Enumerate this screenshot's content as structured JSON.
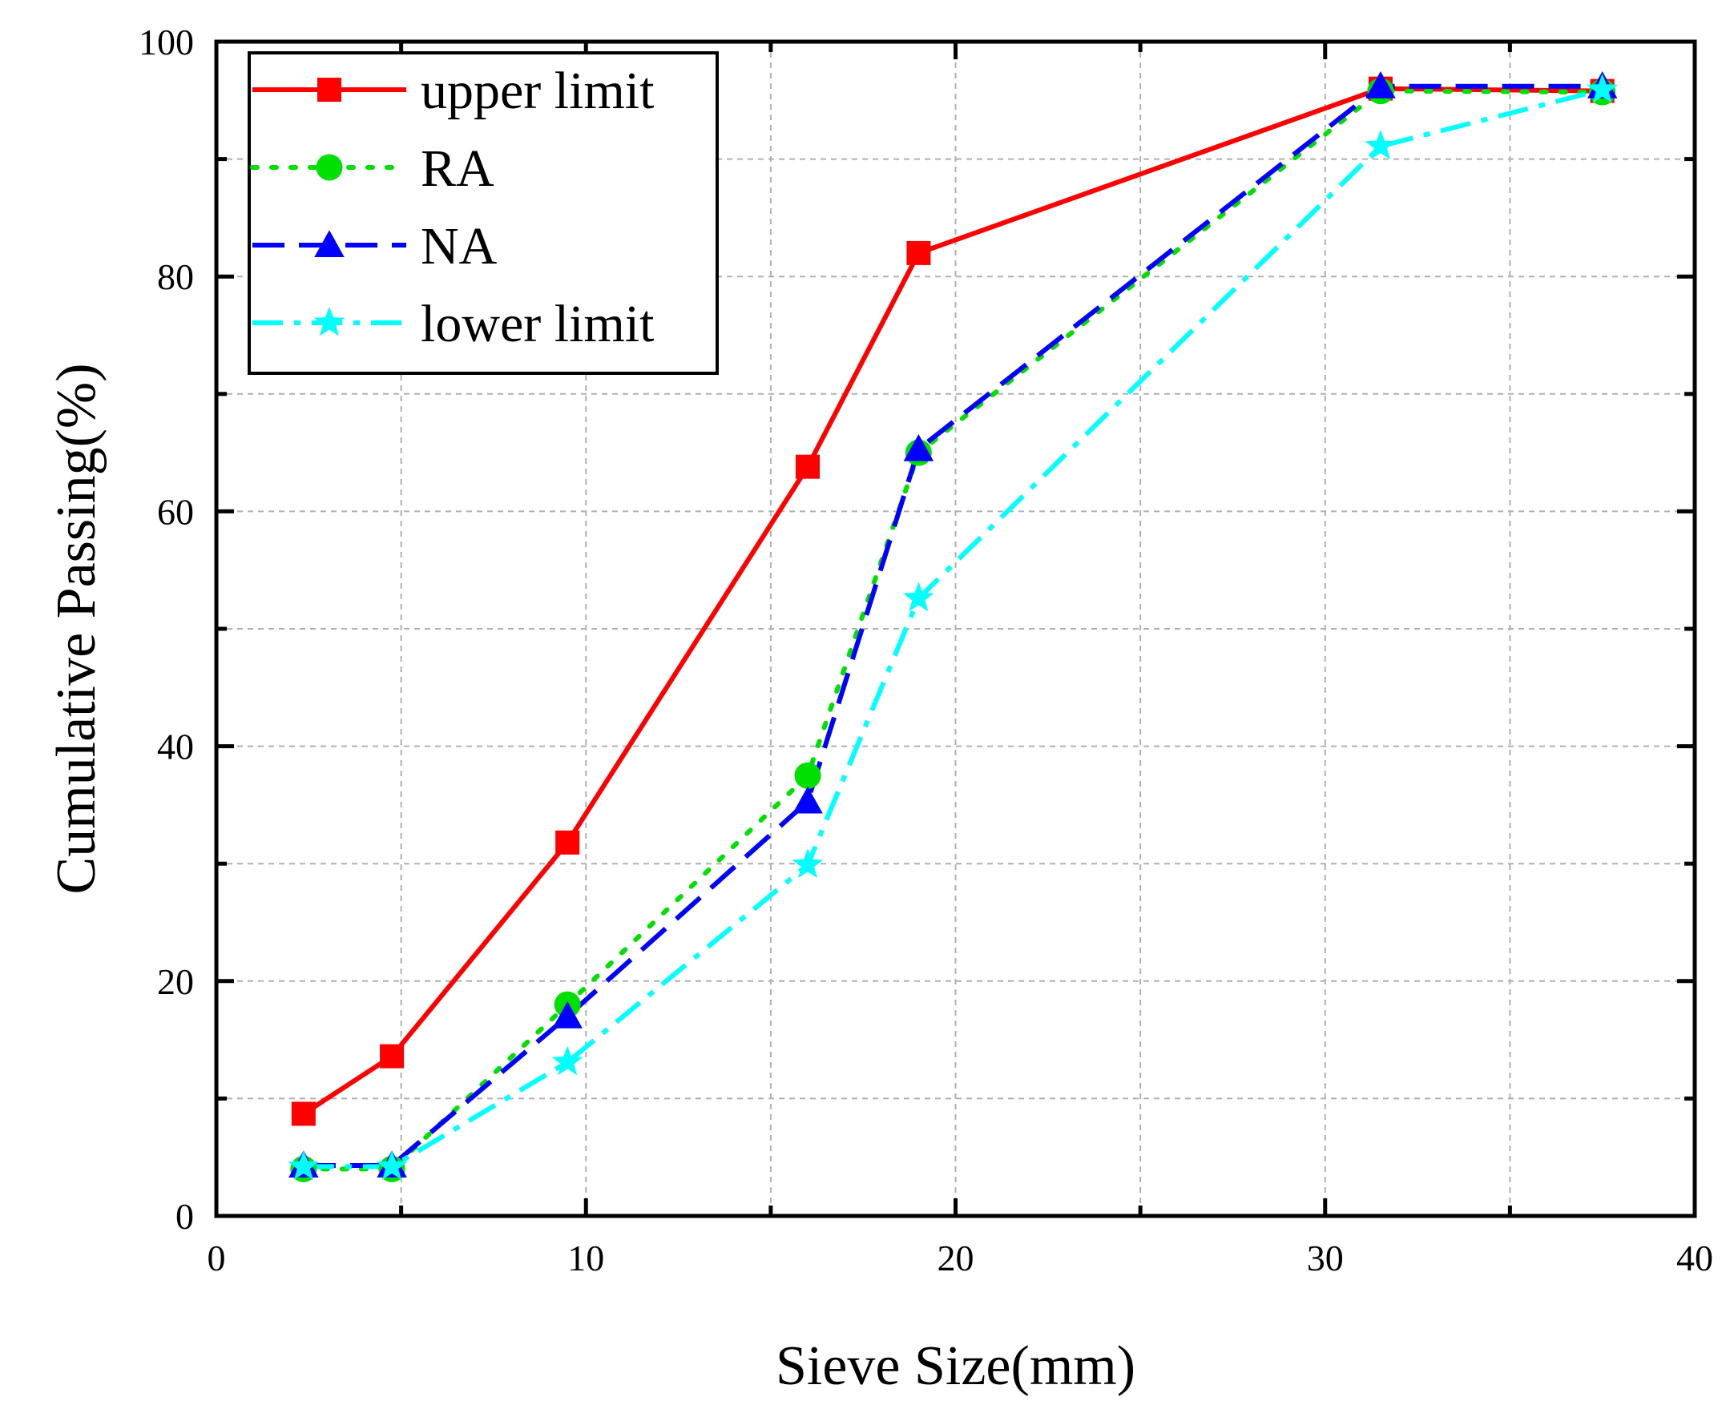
{
  "chart_data": {
    "type": "line",
    "title": "",
    "xlabel": "Sieve Size(mm)",
    "ylabel": "Cumulative Passing(%)",
    "xlim": [
      0,
      40
    ],
    "ylim": [
      0,
      100
    ],
    "xticks": [
      0,
      10,
      20,
      30,
      40
    ],
    "yticks": [
      0,
      20,
      40,
      60,
      80,
      100
    ],
    "grid": true,
    "legend_position": "top-left",
    "series": [
      {
        "name": "upper limit",
        "color": "#ff0000",
        "dash": "solid",
        "marker": "square",
        "x": [
          2.36,
          4.75,
          9.5,
          16,
          19,
          31.5,
          37.5
        ],
        "y": [
          8.7,
          13.6,
          31.8,
          63.8,
          82,
          96,
          95.8
        ]
      },
      {
        "name": "RA",
        "color": "#00e000",
        "dash": "dot",
        "marker": "circle",
        "x": [
          2.36,
          4.75,
          9.5,
          16,
          19,
          31.5,
          37.5
        ],
        "y": [
          4,
          4,
          18,
          37.5,
          65,
          95.8,
          95.7
        ]
      },
      {
        "name": "NA",
        "color": "#0000ff",
        "dash": "dash",
        "marker": "triangle",
        "x": [
          2.36,
          4.75,
          9.5,
          16,
          19,
          31.5,
          37.5
        ],
        "y": [
          4.3,
          4.3,
          17,
          35.3,
          65.3,
          96.2,
          96.2
        ]
      },
      {
        "name": "lower limit",
        "color": "#00ffff",
        "dash": "dashdot",
        "marker": "star",
        "x": [
          2.36,
          4.75,
          9.5,
          16,
          19,
          31.5,
          37.5
        ],
        "y": [
          4.2,
          4.2,
          13.1,
          29.9,
          52.6,
          91.1,
          95.9
        ]
      }
    ]
  }
}
